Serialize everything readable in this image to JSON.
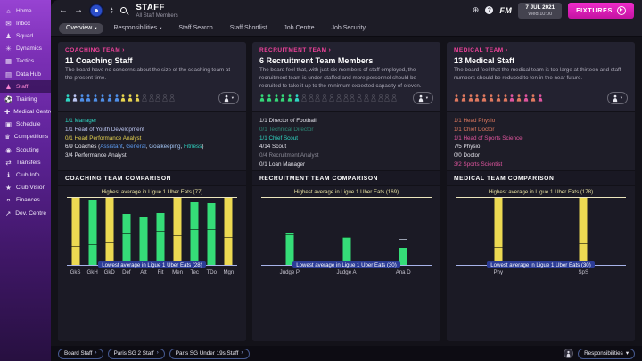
{
  "glyphs": {
    "back": "←",
    "forward": "→",
    "caret": "▾",
    "chevron": "›",
    "globe": "⊕",
    "help": "?",
    "continue": "▶",
    "updown_up": "▲",
    "updown_down": "▼"
  },
  "colors": {
    "accent_magenta": "#e41bbe",
    "panel_header_pink": "#f0439b",
    "bar_green": "#35dd78",
    "bar_yellow": "#ecd952",
    "teal": "#2fd6c3",
    "lavender": "#bcc6f2",
    "blue": "#4f8fe8",
    "yellow": "#e8d44f",
    "green": "#35d878",
    "coral": "#e0795f",
    "pink": "#e0559e",
    "empty_icon_outline": "#5b5a66",
    "low_label_bg": "#2c3c96"
  },
  "titlebar": {
    "title": "STAFF",
    "subtitle": "All Staff Members",
    "fm_logo": "FM",
    "date_line1": "7 JUL 2021",
    "date_line2": "Wed 10:00",
    "continue_label": "FIXTURES"
  },
  "tabs": [
    {
      "label": "Overview",
      "dropdown": true,
      "active": true
    },
    {
      "label": "Responsibilities",
      "dropdown": true
    },
    {
      "label": "Staff Search"
    },
    {
      "label": "Staff Shortlist"
    },
    {
      "label": "Job Centre"
    },
    {
      "label": "Job Security"
    }
  ],
  "sidebar": {
    "items": [
      {
        "label": "Home",
        "icon": "home-icon",
        "glyph": "⌂"
      },
      {
        "label": "Inbox",
        "icon": "inbox-icon",
        "glyph": "✉"
      },
      {
        "label": "Squad",
        "icon": "squad-icon",
        "glyph": "♟"
      },
      {
        "label": "Dynamics",
        "icon": "dynamics-icon",
        "glyph": "✳"
      },
      {
        "label": "Tactics",
        "icon": "tactics-icon",
        "glyph": "▦"
      },
      {
        "label": "Data Hub",
        "icon": "data-hub-icon",
        "glyph": "▤"
      },
      {
        "label": "Staff",
        "icon": "staff-icon",
        "glyph": "♟",
        "active": true
      },
      {
        "label": "Training",
        "icon": "training-icon",
        "glyph": "⚽"
      },
      {
        "label": "Medical Centre",
        "icon": "medical-centre-icon",
        "glyph": "✚"
      },
      {
        "label": "Schedule",
        "icon": "schedule-icon",
        "glyph": "▣"
      },
      {
        "label": "Competitions",
        "icon": "competitions-icon",
        "glyph": "♛"
      },
      {
        "label": "Scouting",
        "icon": "scouting-icon",
        "glyph": "◉"
      },
      {
        "label": "Transfers",
        "icon": "transfers-icon",
        "glyph": "⇄"
      },
      {
        "label": "Club Info",
        "icon": "club-info-icon",
        "glyph": "ℹ"
      },
      {
        "label": "Club Vision",
        "icon": "club-vision-icon",
        "glyph": "★"
      },
      {
        "label": "Finances",
        "icon": "finances-icon",
        "glyph": "¤"
      },
      {
        "label": "Dev. Centre",
        "icon": "dev-centre-icon",
        "glyph": "↗"
      }
    ]
  },
  "panels": [
    {
      "id": "coaching",
      "header": "COACHING TEAM",
      "count_title": "11 Coaching Staff",
      "description": "The board have no concerns about the size of the coaching team at the present time.",
      "staff_icons": {
        "filled": [
          "teal",
          "lavender",
          "blue",
          "blue",
          "blue",
          "blue",
          "blue",
          "blue",
          "yellow",
          "yellow",
          "yellow"
        ],
        "empty": 5
      },
      "roles": [
        [
          {
            "t": "1/1 Manager",
            "c": "teal"
          }
        ],
        [
          {
            "t": "1/1 Head of Youth Development",
            "c": "lavender"
          }
        ],
        [
          {
            "t": "0/1 Head Performance Analyst",
            "c": "yellow"
          }
        ],
        [
          {
            "t": "6/9 Coaches (",
            "c": "white"
          },
          {
            "t": "Assistant",
            "c": "blue"
          },
          {
            "t": ", ",
            "c": "white"
          },
          {
            "t": "General",
            "c": "blue"
          },
          {
            "t": ", ",
            "c": "white"
          },
          {
            "t": "Goalkeeping",
            "c": "lightblue"
          },
          {
            "t": ", ",
            "c": "white"
          },
          {
            "t": "Fitness",
            "c": "teal"
          },
          {
            "t": ")",
            "c": "white"
          }
        ],
        [
          {
            "t": "3/4 Performance Analyst",
            "c": "white"
          }
        ]
      ],
      "chart": {
        "title": "COACHING TEAM COMPARISON",
        "high_label": "Highest average in Ligue 1 Uber Eats (77)",
        "low_label": "Lowest average in Ligue 1 Uber Eats (28)",
        "bars": [
          {
            "label": "GkS",
            "color": "yellow",
            "height_pct": 100,
            "marker_pct": 27
          },
          {
            "label": "GkH",
            "color": "green",
            "height_pct": 97,
            "marker_pct": 30
          },
          {
            "label": "GkD",
            "color": "yellow",
            "height_pct": 100,
            "marker_pct": 32
          },
          {
            "label": "Def",
            "color": "green",
            "height_pct": 76,
            "marker_pct": 47
          },
          {
            "label": "Att",
            "color": "green",
            "height_pct": 71,
            "marker_pct": 45
          },
          {
            "label": "Fit",
            "color": "green",
            "height_pct": 78,
            "marker_pct": 49
          },
          {
            "label": "Men",
            "color": "yellow",
            "height_pct": 100,
            "marker_pct": 43
          },
          {
            "label": "Tec",
            "color": "green",
            "height_pct": 94,
            "marker_pct": 52
          },
          {
            "label": "TDo",
            "color": "green",
            "height_pct": 92,
            "marker_pct": 52
          },
          {
            "label": "Mgn",
            "color": "yellow",
            "height_pct": 100,
            "marker_pct": 40
          }
        ]
      }
    },
    {
      "id": "recruitment",
      "header": "RECRUITMENT TEAM",
      "count_title": "6 Recruitment Team Members",
      "description": "The board feel that, with just six members of staff employed, the recruitment team is under-staffed and more personnel should be recruited to take it up to the minimum expected capacity of eleven.",
      "staff_icons": {
        "filled": [
          "green",
          "green",
          "green",
          "green",
          "green",
          "teal"
        ],
        "empty": 14
      },
      "roles": [
        [
          {
            "t": "1/1 Director of Football",
            "c": "white"
          }
        ],
        [
          {
            "t": "0/1 Technical Director",
            "c": "dimteal"
          }
        ],
        [
          {
            "t": "1/1 Chief Scout",
            "c": "teal"
          }
        ],
        [
          {
            "t": "4/14 Scout",
            "c": "white"
          }
        ],
        [
          {
            "t": "0/4 Recruitment Analyst",
            "c": "gray"
          }
        ],
        [
          {
            "t": "0/1 Loan Manager",
            "c": "white"
          }
        ]
      ],
      "chart": {
        "title": "RECRUITMENT TEAM COMPARISON",
        "high_label": "Highest average in Ligue 1 Uber Eats (169)",
        "low_label": "Lowest average in Ligue 1 Uber Eats (30)",
        "bars": [
          {
            "label": "Judge P",
            "color": "green",
            "height_pct": 48,
            "marker_pct": 44
          },
          {
            "label": "Judge A",
            "color": "green",
            "height_pct": 42,
            "marker_pct": 40
          },
          {
            "label": "Ana D",
            "color": "green",
            "height_pct": 26,
            "marker_pct": 37
          }
        ]
      }
    },
    {
      "id": "medical",
      "header": "MEDICAL TEAM",
      "count_title": "13 Medical Staff",
      "description": "The board feel that the medical team is too large at thirteen and staff numbers should be reduced to ten in the near future.",
      "staff_icons": {
        "filled": [
          "coral",
          "coral",
          "coral",
          "coral",
          "coral",
          "coral",
          "coral",
          "coral",
          "pink",
          "coral",
          "pink",
          "coral",
          "pink"
        ],
        "empty": 0
      },
      "roles": [
        [
          {
            "t": "1/1 Head Physio",
            "c": "coral"
          }
        ],
        [
          {
            "t": "1/1 Chief Doctor",
            "c": "coral"
          }
        ],
        [
          {
            "t": "1/1 Head of Sports Science",
            "c": "pink"
          }
        ],
        [
          {
            "t": "7/5 Physio",
            "c": "white"
          }
        ],
        [
          {
            "t": "0/0 Doctor",
            "c": "white"
          }
        ],
        [
          {
            "t": "3/2 Sports Scientist",
            "c": "pink"
          }
        ]
      ],
      "chart": {
        "title": "MEDICAL TEAM COMPARISON",
        "high_label": "Highest average in Ligue 1 Uber Eats (178)",
        "low_label": "Lowest average in Ligue 1 Uber Eats (30)",
        "bars": [
          {
            "label": "Phy",
            "color": "yellow",
            "height_pct": 100,
            "marker_pct": 26
          },
          {
            "label": "SpS",
            "color": "yellow",
            "height_pct": 100,
            "marker_pct": 31
          }
        ]
      }
    }
  ],
  "chart_data": [
    {
      "type": "bar",
      "title": "Coaching Team Comparison",
      "categories": [
        "GkS",
        "GkH",
        "GkD",
        "Def",
        "Att",
        "Fit",
        "Men",
        "Tec",
        "TDo",
        "Mgn"
      ],
      "values": [
        77,
        76,
        77,
        65,
        63,
        66,
        77,
        74,
        73,
        77
      ],
      "league_average_markers": [
        41,
        43,
        44,
        51,
        50,
        52,
        49,
        54,
        54,
        48
      ],
      "ylim": [
        28,
        77
      ],
      "annotations": {
        "high": "Highest average in Ligue 1 Uber Eats (77)",
        "low": "Lowest average in Ligue 1 Uber Eats (28)"
      }
    },
    {
      "type": "bar",
      "title": "Recruitment Team Comparison",
      "categories": [
        "Judge P",
        "Judge A",
        "Ana D"
      ],
      "values": [
        97,
        88,
        66
      ],
      "league_average_markers": [
        91,
        86,
        81
      ],
      "ylim": [
        30,
        169
      ],
      "annotations": {
        "high": "Highest average in Ligue 1 Uber Eats (169)",
        "low": "Lowest average in Ligue 1 Uber Eats (30)"
      }
    },
    {
      "type": "bar",
      "title": "Medical Team Comparison",
      "categories": [
        "Phy",
        "SpS"
      ],
      "values": [
        178,
        178
      ],
      "league_average_markers": [
        68,
        76
      ],
      "ylim": [
        30,
        178
      ],
      "annotations": {
        "high": "Highest average in Ligue 1 Uber Eats (178)",
        "low": "Lowest average in Ligue 1 Uber Eats (30)"
      }
    }
  ],
  "footer": {
    "buttons": [
      "Board Staff",
      "Paris SG 2 Staff",
      "Paris SG Under 19s Staff"
    ],
    "responsibilities_label": "Responsibilities"
  }
}
